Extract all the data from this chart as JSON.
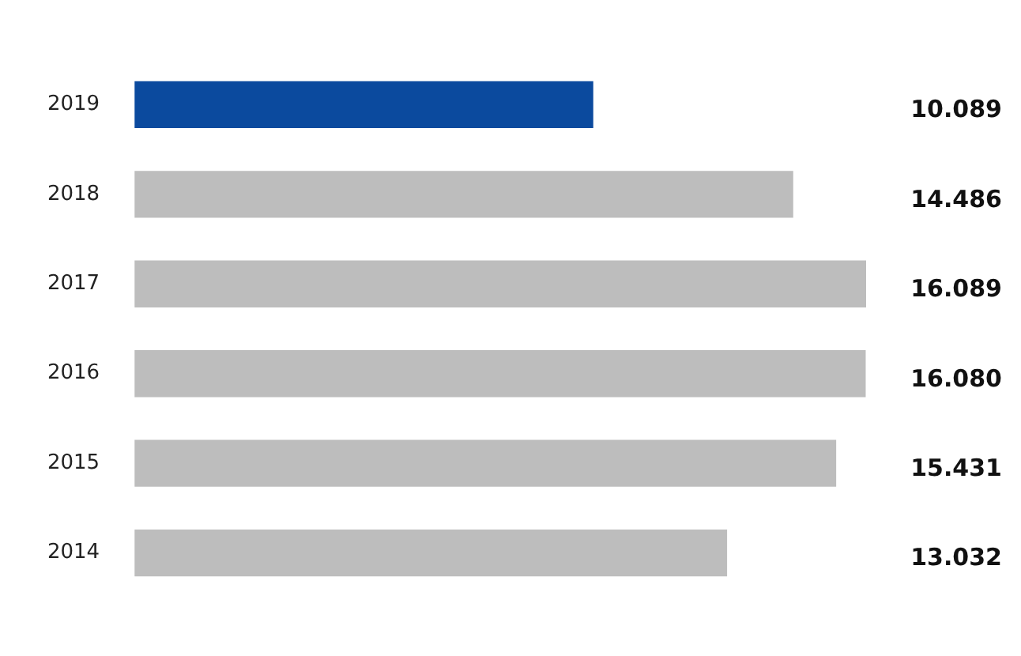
{
  "chart_data": {
    "type": "bar",
    "orientation": "horizontal",
    "categories": [
      "2019",
      "2018",
      "2017",
      "2016",
      "2015",
      "2014"
    ],
    "values": [
      10089,
      14486,
      16089,
      16080,
      15431,
      13032
    ],
    "colors": [
      "#0b4a9e",
      "#bdbdbd",
      "#bdbdbd",
      "#bdbdbd",
      "#bdbdbd",
      "#bdbdbd"
    ],
    "value_labels": [
      "10.089",
      "14.486",
      "16.089",
      "16.080",
      "15.431",
      "13.032"
    ],
    "legend": false
  }
}
